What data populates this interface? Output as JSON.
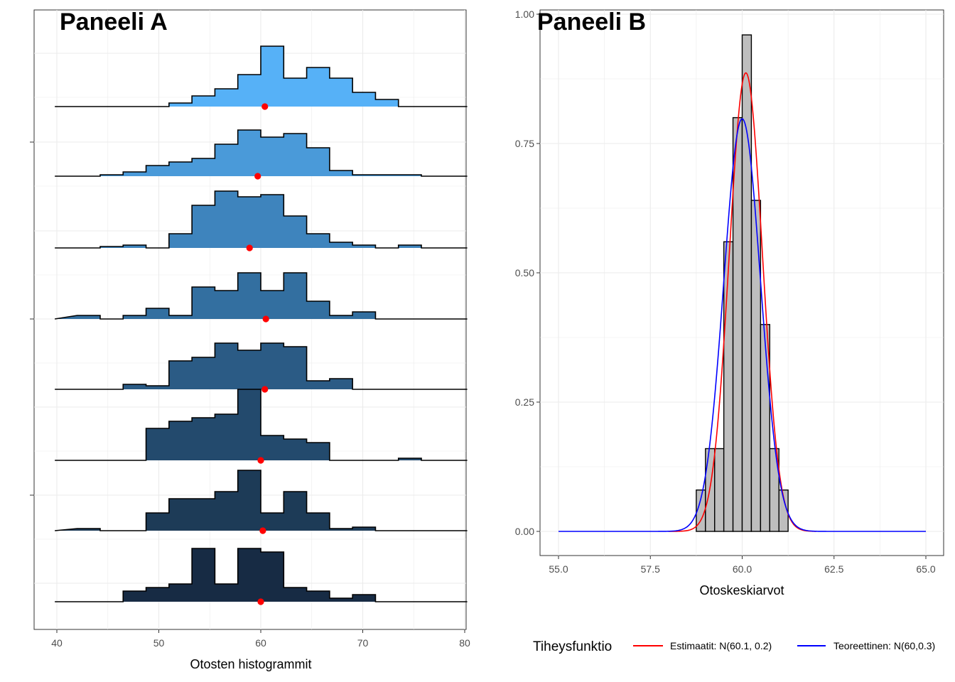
{
  "chart_data": [
    {
      "panel": "A",
      "type": "area",
      "subtype": "ridgeline-histogram",
      "title": "Paneeli A",
      "xlabel": "Otosten histogrammit",
      "ylabel": "",
      "xlim": [
        38,
        80
      ],
      "x_ticks": [
        "40",
        "50",
        "60",
        "70",
        "80"
      ],
      "grid": true,
      "bin_width": 2.25,
      "bin_start": 42.0,
      "series": [
        {
          "values": [
            0,
            0,
            0,
            0,
            0.05,
            0.15,
            0.25,
            0.45,
            0.85,
            0.4,
            0.55,
            0.4,
            0.2,
            0.1,
            0,
            0,
            0
          ],
          "mean": 60.4,
          "color": "#56b1f7"
        },
        {
          "values": [
            0,
            0.02,
            0.06,
            0.15,
            0.2,
            0.25,
            0.45,
            0.65,
            0.55,
            0.6,
            0.4,
            0.08,
            0.02,
            0.02,
            0.02,
            0,
            0
          ],
          "mean": 59.7,
          "color": "#4a9ad9"
        },
        {
          "values": [
            0,
            0.02,
            0.04,
            0,
            0.2,
            0.6,
            0.8,
            0.72,
            0.75,
            0.45,
            0.2,
            0.08,
            0.04,
            0,
            0.04,
            0,
            0
          ],
          "mean": 58.9,
          "color": "#3e84bd"
        },
        {
          "values": [
            0.05,
            0,
            0.05,
            0.15,
            0.05,
            0.45,
            0.4,
            0.65,
            0.4,
            0.65,
            0.25,
            0.05,
            0.1,
            0,
            0,
            0,
            0
          ],
          "mean": 60.5,
          "color": "#336fa0"
        },
        {
          "values": [
            0,
            0,
            0.07,
            0.05,
            0.4,
            0.45,
            0.65,
            0.55,
            0.65,
            0.6,
            0.12,
            0.15,
            0,
            0,
            0,
            0,
            0
          ],
          "mean": 60.4,
          "color": "#2b5b85"
        },
        {
          "values": [
            0,
            0,
            0,
            0.45,
            0.55,
            0.6,
            0.65,
            1.0,
            0.35,
            0.3,
            0.25,
            0,
            0,
            0,
            0.03,
            0,
            0
          ],
          "mean": 60.0,
          "color": "#234a6d"
        },
        {
          "values": [
            0.03,
            0,
            0,
            0.25,
            0.45,
            0.45,
            0.55,
            0.85,
            0.25,
            0.55,
            0.25,
            0.03,
            0.05,
            0,
            0,
            0,
            0
          ],
          "mean": 60.2,
          "color": "#1d3b57"
        },
        {
          "values": [
            0,
            0,
            0.15,
            0.2,
            0.25,
            0.75,
            0.25,
            0.75,
            0.7,
            0.2,
            0.15,
            0.05,
            0.1,
            0,
            0,
            0,
            0
          ],
          "mean": 60.0,
          "color": "#172b44"
        }
      ],
      "fill_gradient": [
        "#56b1f7",
        "#132b43"
      ],
      "mean_marker_color": "#ff0000",
      "outline_color": "#000000"
    },
    {
      "panel": "B",
      "type": "bar",
      "subtype": "density-histogram-with-curves",
      "title": "Paneeli B",
      "xlabel": "Otoskeskiarvot",
      "ylabel": "",
      "xlim": [
        55,
        65
      ],
      "ylim": [
        0,
        1.0
      ],
      "x_ticks": [
        "55.0",
        "57.5",
        "60.0",
        "62.5",
        "65.0"
      ],
      "y_ticks": [
        "0.00",
        "0.25",
        "0.50",
        "0.75",
        "1.00"
      ],
      "grid": true,
      "bins": [
        {
          "x0": 58.75,
          "x1": 59.0,
          "y": 0.08
        },
        {
          "x0": 59.0,
          "x1": 59.25,
          "y": 0.16
        },
        {
          "x0": 59.25,
          "x1": 59.5,
          "y": 0.16
        },
        {
          "x0": 59.5,
          "x1": 59.75,
          "y": 0.56
        },
        {
          "x0": 59.75,
          "x1": 60.0,
          "y": 0.8
        },
        {
          "x0": 60.0,
          "x1": 60.25,
          "y": 0.96
        },
        {
          "x0": 60.25,
          "x1": 60.5,
          "y": 0.64
        },
        {
          "x0": 60.5,
          "x1": 60.75,
          "y": 0.4
        },
        {
          "x0": 60.75,
          "x1": 61.0,
          "y": 0.16
        },
        {
          "x0": 61.0,
          "x1": 61.25,
          "y": 0.08
        }
      ],
      "bar_fill": "#bebebe",
      "bar_outline": "#000000",
      "curves": [
        {
          "name": "Estimaatit: N(60.1, 0.2)",
          "mean": 60.1,
          "sd": 0.45,
          "color": "#ff0000",
          "x_range": [
            58.0,
            62.0
          ]
        },
        {
          "name": "Teoreettinen: N(60,0.3)",
          "mean": 60.0,
          "sd": 0.5,
          "color": "#0000ff",
          "x_range": [
            55.0,
            65.0
          ]
        }
      ],
      "legend": {
        "title": "Tiheysfunktio",
        "position": "bottom"
      }
    }
  ]
}
